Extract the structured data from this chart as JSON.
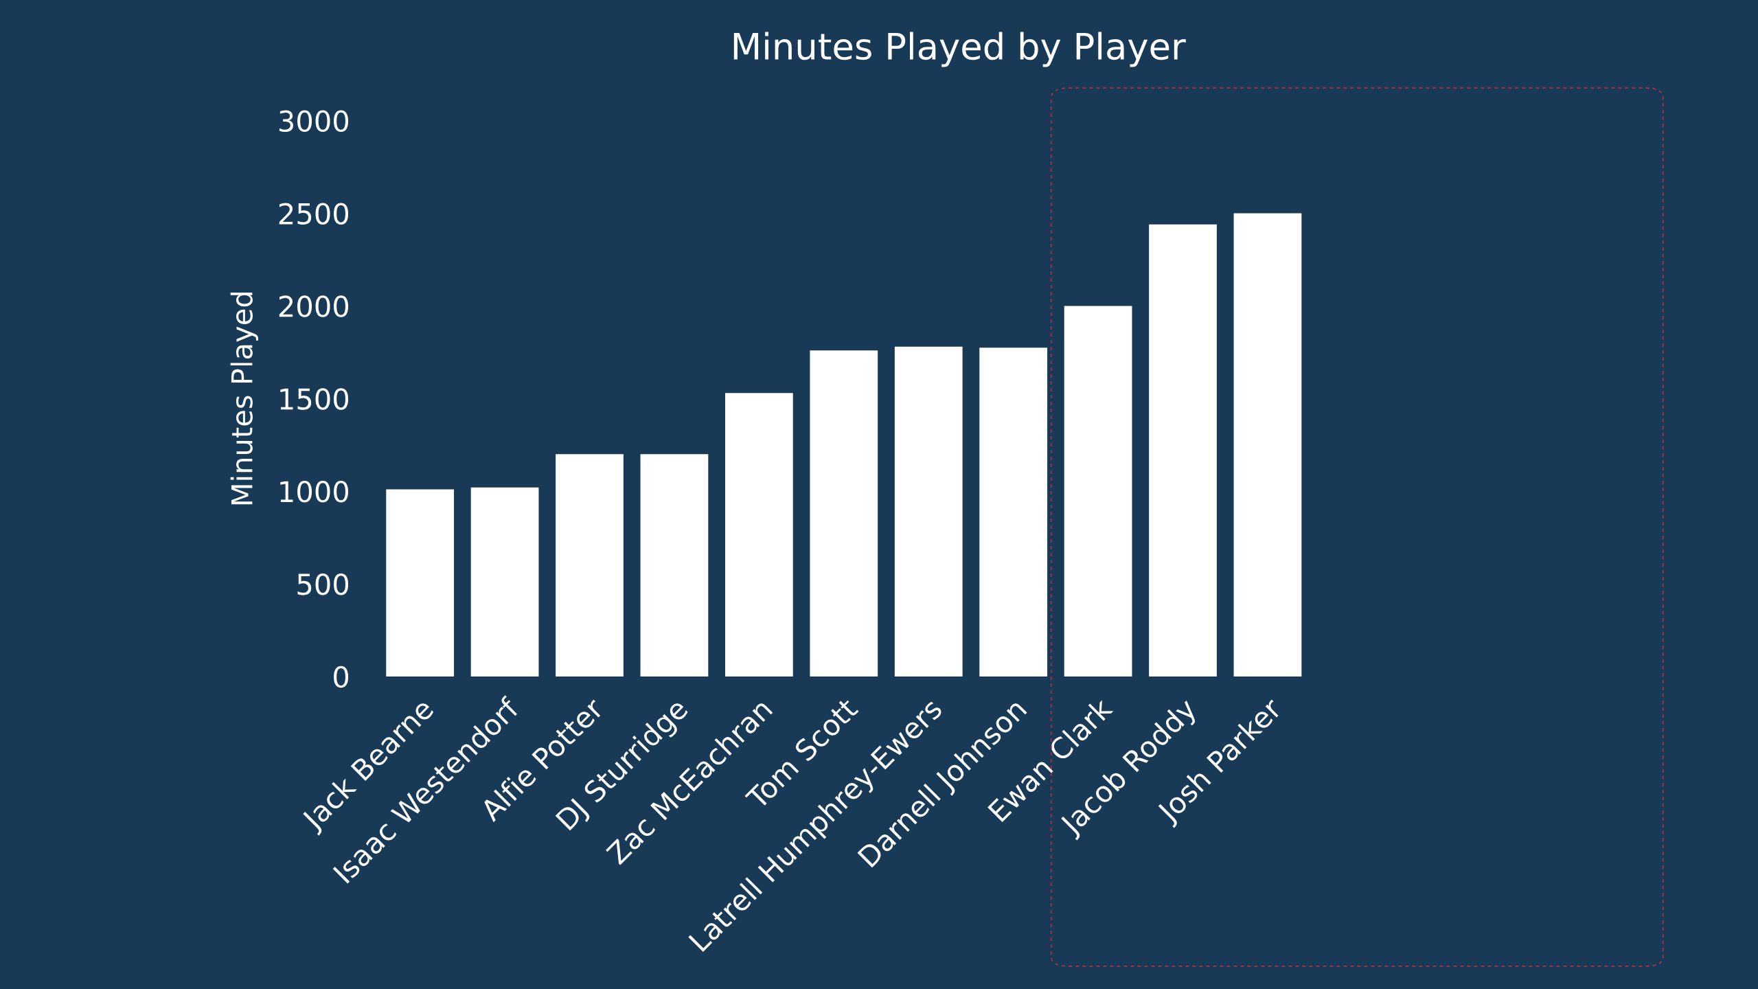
{
  "chart_data": {
    "type": "bar",
    "title": "Minutes Played by Player",
    "ylabel": "Minutes Played",
    "categories": [
      "Jack Bearne",
      "Isaac Westendorf",
      "Alfie Potter",
      "DJ Sturridge",
      "Zac McEachran",
      "Tom Scott",
      "Latrell Humphrey-Ewers",
      "Darnell Johnson",
      "Ewan Clark",
      "Jacob Roddy",
      "Josh Parker"
    ],
    "values": [
      1010,
      1020,
      1200,
      1200,
      1530,
      1760,
      1780,
      1775,
      2000,
      2440,
      2500
    ],
    "color": "#ffffff",
    "ylim": [
      0,
      3000
    ],
    "yticks": [
      0,
      500,
      1000,
      1500,
      2000,
      2500,
      3000
    ],
    "grid": false
  }
}
